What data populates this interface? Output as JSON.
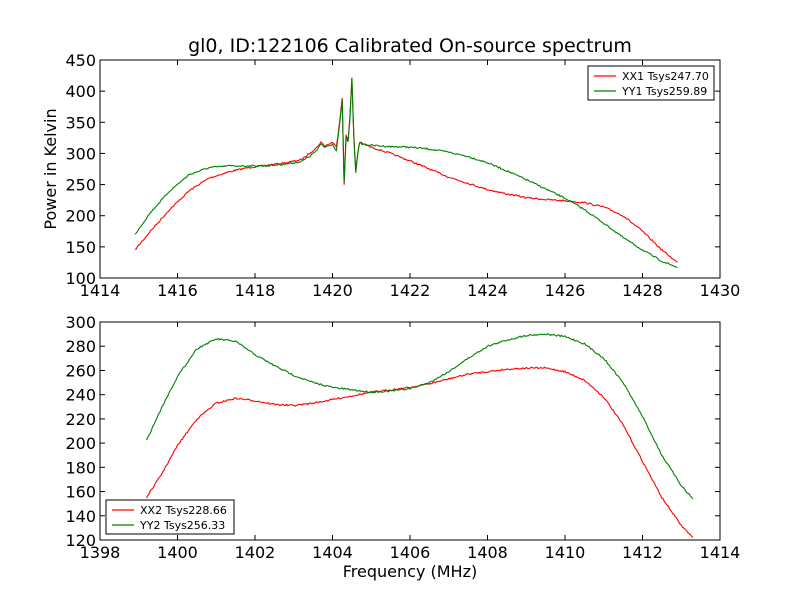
{
  "figure": {
    "title": "gl0, ID:122106 Calibrated On-source spectrum",
    "xlabel": "Frequency (MHz)",
    "ylabel": "Power in Kelvin"
  },
  "chart_data": [
    {
      "type": "line",
      "title": "gl0, ID:122106 Calibrated On-source spectrum",
      "xlabel": "",
      "ylabel": "Power in Kelvin",
      "xlim": [
        1414,
        1430
      ],
      "ylim": [
        100,
        450
      ],
      "xticks": [
        1414,
        1416,
        1418,
        1420,
        1422,
        1424,
        1426,
        1428,
        1430
      ],
      "yticks": [
        100,
        150,
        200,
        250,
        300,
        350,
        400,
        450
      ],
      "legend_position": "top-right",
      "series": [
        {
          "name": "XX1 Tsys247.70",
          "color": "#ff0000",
          "x": [
            1414.9,
            1415.3,
            1415.8,
            1416.3,
            1416.8,
            1417.3,
            1417.8,
            1418.3,
            1418.8,
            1419.2,
            1419.4,
            1419.6,
            1419.7,
            1419.8,
            1420.0,
            1420.1,
            1420.2,
            1420.25,
            1420.3,
            1420.35,
            1420.4,
            1420.45,
            1420.5,
            1420.55,
            1420.6,
            1420.65,
            1420.7,
            1420.8,
            1421.0,
            1421.5,
            1422.0,
            1422.5,
            1423.0,
            1423.5,
            1424.0,
            1424.5,
            1425.0,
            1425.5,
            1426.0,
            1426.5,
            1427.0,
            1427.5,
            1428.0,
            1428.5,
            1428.9
          ],
          "y": [
            145,
            175,
            210,
            240,
            260,
            270,
            277,
            281,
            285,
            290,
            300,
            310,
            318,
            312,
            318,
            310,
            360,
            390,
            250,
            330,
            320,
            360,
            420,
            330,
            272,
            300,
            318,
            315,
            310,
            300,
            288,
            275,
            262,
            252,
            242,
            235,
            229,
            226,
            224,
            221,
            214,
            200,
            175,
            145,
            125
          ]
        },
        {
          "name": "YY1 Tsys259.89",
          "color": "#008000",
          "x": [
            1414.9,
            1415.3,
            1415.8,
            1416.3,
            1416.8,
            1417.3,
            1417.8,
            1418.3,
            1418.8,
            1419.2,
            1419.4,
            1419.6,
            1419.7,
            1419.8,
            1420.0,
            1420.1,
            1420.2,
            1420.25,
            1420.3,
            1420.35,
            1420.4,
            1420.45,
            1420.5,
            1420.55,
            1420.6,
            1420.65,
            1420.7,
            1420.8,
            1421.0,
            1421.5,
            1422.0,
            1422.5,
            1423.0,
            1423.5,
            1424.0,
            1424.5,
            1425.0,
            1425.5,
            1426.0,
            1426.5,
            1427.0,
            1427.5,
            1428.0,
            1428.5,
            1428.9
          ],
          "y": [
            170,
            205,
            240,
            266,
            277,
            280,
            280,
            280,
            283,
            287,
            295,
            305,
            315,
            310,
            315,
            305,
            355,
            385,
            252,
            325,
            318,
            355,
            422,
            325,
            270,
            300,
            316,
            315,
            313,
            311,
            310,
            307,
            302,
            295,
            285,
            272,
            258,
            243,
            228,
            210,
            188,
            165,
            145,
            127,
            117
          ]
        }
      ]
    },
    {
      "type": "line",
      "title": "",
      "xlabel": "Frequency (MHz)",
      "ylabel": "",
      "xlim": [
        1398,
        1414
      ],
      "ylim": [
        120,
        300
      ],
      "xticks": [
        1398,
        1400,
        1402,
        1404,
        1406,
        1408,
        1410,
        1412,
        1414
      ],
      "yticks": [
        120,
        140,
        160,
        180,
        200,
        220,
        240,
        260,
        280,
        300
      ],
      "legend_position": "bottom-left",
      "series": [
        {
          "name": "XX2 Tsys228.66",
          "color": "#ff0000",
          "x": [
            1399.2,
            1399.6,
            1400.0,
            1400.5,
            1401.0,
            1401.5,
            1402.0,
            1402.5,
            1403.0,
            1403.5,
            1404.0,
            1404.5,
            1405.0,
            1405.5,
            1406.0,
            1406.5,
            1407.0,
            1407.5,
            1408.0,
            1408.5,
            1409.0,
            1409.5,
            1410.0,
            1410.5,
            1411.0,
            1411.5,
            1412.0,
            1412.5,
            1413.0,
            1413.3
          ],
          "y": [
            155,
            175,
            198,
            220,
            233,
            237,
            235,
            232,
            231,
            233,
            236,
            239,
            242,
            244,
            246,
            249,
            253,
            257,
            259,
            261,
            262,
            262,
            259,
            252,
            238,
            215,
            185,
            155,
            132,
            122
          ]
        },
        {
          "name": "YY2 Tsys256.33",
          "color": "#008000",
          "x": [
            1399.2,
            1399.6,
            1400.0,
            1400.5,
            1401.0,
            1401.5,
            1402.0,
            1402.5,
            1403.0,
            1403.5,
            1404.0,
            1404.5,
            1405.0,
            1405.5,
            1406.0,
            1406.5,
            1407.0,
            1407.5,
            1408.0,
            1408.5,
            1409.0,
            1409.5,
            1410.0,
            1410.5,
            1411.0,
            1411.5,
            1412.0,
            1412.5,
            1413.0,
            1413.3
          ],
          "y": [
            202,
            230,
            255,
            278,
            286,
            284,
            273,
            264,
            256,
            250,
            246,
            244,
            242,
            243,
            245,
            250,
            259,
            270,
            280,
            285,
            289,
            290,
            288,
            282,
            270,
            250,
            222,
            190,
            165,
            154
          ]
        }
      ]
    }
  ]
}
